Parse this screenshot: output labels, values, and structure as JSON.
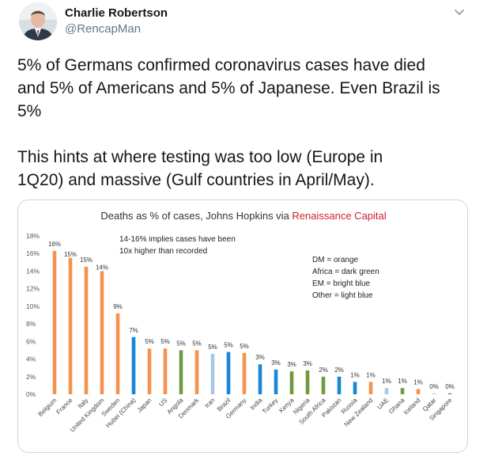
{
  "author": {
    "name": "Charlie Robertson",
    "handle": "@RencapMan"
  },
  "tweet": {
    "lines": [
      "5% of Germans confirmed coronavirus cases have died",
      "and 5% of Americans and 5% of Japanese. Even Brazil is",
      "5%",
      "",
      "This hints at where testing was too low (Europe in",
      "1Q20) and massive (Gulf countries in April/May)."
    ]
  },
  "icons": {
    "caret": "chevron-down-icon",
    "avatar": "avatar-photo"
  },
  "chart_data": {
    "type": "bar",
    "title_prefix": "Deaths as % of cases, Johns Hopkins via ",
    "title_brand": "Renaissance Capital",
    "title_brand_color": "#d0202a",
    "ylim": [
      0,
      18
    ],
    "yticks": [
      "0%",
      "2%",
      "4%",
      "6%",
      "8%",
      "10%",
      "12%",
      "14%",
      "16%",
      "18%"
    ],
    "grid": false,
    "annotation": [
      "14-16% implies cases have been",
      "10x higher than recorded"
    ],
    "legend_lines": [
      "DM = orange",
      "Africa = dark green",
      "EM = bright blue",
      "Other = light blue"
    ],
    "legend_placement": "top-right",
    "colors": {
      "DM": "#f4934d",
      "Africa": "#6f9a43",
      "EM": "#1a87d6",
      "Other": "#a7c7e3"
    },
    "categories": [
      "Belgium",
      "France",
      "Italy",
      "United Kingdom",
      "Sweden",
      "Hubei (China)",
      "Japan",
      "US",
      "Angola",
      "Denmark",
      "Iran",
      "Brazil",
      "Germany",
      "India",
      "Turkey",
      "Kenya",
      "Nigeria",
      "South Africa",
      "Pakistan",
      "Russia",
      "New Zealand",
      "UAE",
      "Ghana",
      "Iceland",
      "Qatar",
      "Singapore"
    ],
    "values": [
      16.3,
      15.5,
      14.5,
      14.0,
      9.2,
      6.5,
      5.2,
      5.2,
      5.0,
      5.0,
      4.6,
      4.8,
      4.7,
      3.4,
      2.8,
      2.6,
      2.7,
      2.0,
      2.0,
      1.4,
      1.4,
      0.7,
      0.7,
      0.6,
      0.1,
      0.1
    ],
    "labels": [
      "16%",
      "15%",
      "15%",
      "14%",
      "9%",
      "7%",
      "5%",
      "5%",
      "5%",
      "5%",
      "5%",
      "5%",
      "5%",
      "3%",
      "3%",
      "3%",
      "3%",
      "2%",
      "2%",
      "1%",
      "1%",
      "1%",
      "1%",
      "1%",
      "0%",
      "0%"
    ],
    "groups": [
      "DM",
      "DM",
      "DM",
      "DM",
      "DM",
      "EM",
      "DM",
      "DM",
      "Africa",
      "DM",
      "Other",
      "EM",
      "DM",
      "EM",
      "EM",
      "Africa",
      "Africa",
      "Africa",
      "EM",
      "EM",
      "DM",
      "Other",
      "Africa",
      "DM",
      "Other",
      "EM"
    ]
  }
}
